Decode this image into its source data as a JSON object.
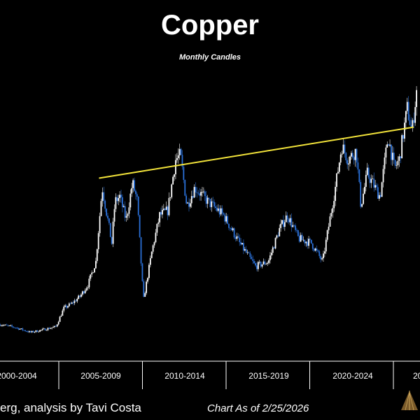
{
  "chart_data": {
    "type": "candlestick",
    "title": "Copper",
    "subtitle": "Monthly Candles",
    "x_tick_labels": [
      "2000-2004",
      "2005-2009",
      "2010-2014",
      "2015-2019",
      "2020-2024",
      "20"
    ],
    "grid": false,
    "colors": {
      "up": "#ffffff",
      "down": "#2a6fd6",
      "trendline": "#f2e33a",
      "background": "#000000"
    },
    "price_path": [
      [
        2000.0,
        0.85
      ],
      [
        2001.0,
        0.78
      ],
      [
        2001.9,
        0.68
      ],
      [
        2002.5,
        0.72
      ],
      [
        2003.5,
        0.8
      ],
      [
        2004.0,
        1.2
      ],
      [
        2004.5,
        1.3
      ],
      [
        2005.0,
        1.45
      ],
      [
        2005.5,
        1.7
      ],
      [
        2006.0,
        2.2
      ],
      [
        2006.4,
        3.8
      ],
      [
        2006.6,
        3.4
      ],
      [
        2007.0,
        2.6
      ],
      [
        2007.2,
        3.5
      ],
      [
        2007.5,
        3.6
      ],
      [
        2007.9,
        3.1
      ],
      [
        2008.3,
        3.9
      ],
      [
        2008.6,
        3.5
      ],
      [
        2008.9,
        1.8
      ],
      [
        2009.0,
        1.4
      ],
      [
        2009.5,
        2.4
      ],
      [
        2010.0,
        3.2
      ],
      [
        2010.5,
        3.3
      ],
      [
        2011.0,
        4.4
      ],
      [
        2011.3,
        4.5
      ],
      [
        2011.7,
        3.4
      ],
      [
        2012.2,
        3.8
      ],
      [
        2013.0,
        3.5
      ],
      [
        2014.0,
        3.2
      ],
      [
        2015.0,
        2.6
      ],
      [
        2016.0,
        2.1
      ],
      [
        2016.8,
        2.2
      ],
      [
        2017.5,
        2.9
      ],
      [
        2018.0,
        3.2
      ],
      [
        2018.7,
        2.7
      ],
      [
        2019.5,
        2.6
      ],
      [
        2020.2,
        2.2
      ],
      [
        2020.6,
        3.0
      ],
      [
        2021.0,
        3.8
      ],
      [
        2021.4,
        4.7
      ],
      [
        2021.8,
        4.4
      ],
      [
        2022.3,
        4.6
      ],
      [
        2022.6,
        3.4
      ],
      [
        2023.0,
        4.1
      ],
      [
        2023.8,
        3.6
      ],
      [
        2024.3,
        4.9
      ],
      [
        2024.7,
        4.2
      ],
      [
        2025.0,
        4.4
      ],
      [
        2025.5,
        5.5
      ],
      [
        2025.8,
        5.0
      ],
      [
        2026.15,
        6.1
      ]
    ],
    "trendline": {
      "from": [
        2006.2,
        4.0
      ],
      "to": [
        2025.9,
        5.1
      ]
    }
  },
  "footer": {
    "source": "erg, analysis by Tavi Costa",
    "as_of": "Chart As of 2/25/2026"
  }
}
